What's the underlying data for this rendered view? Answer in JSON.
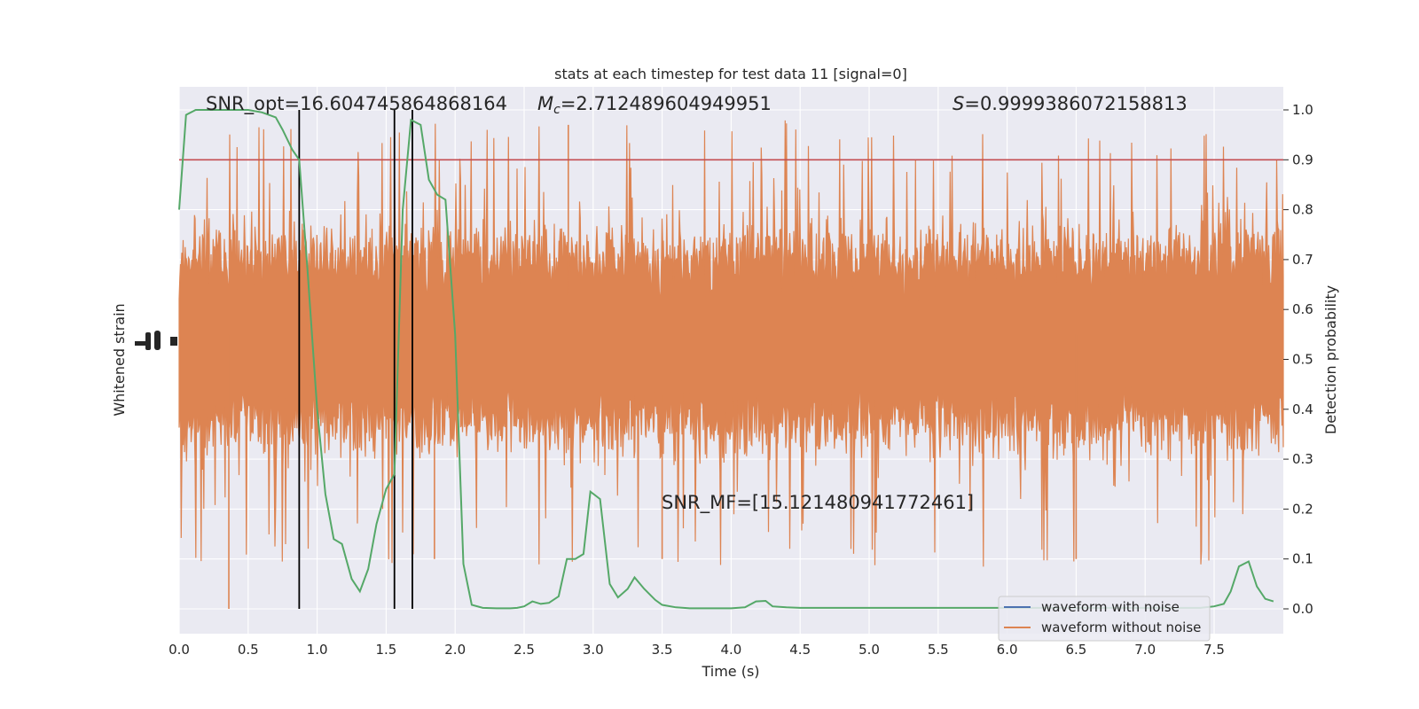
{
  "chart_data": {
    "type": "line",
    "title": "stats at each timestep for test data 11 [signal=0]",
    "xlabel": "Time (s)",
    "ylabel_left": "Whitened strain",
    "ylabel_right": "Detection probability",
    "xlim": [
      0,
      8.0
    ],
    "ylim_right": [
      -0.05,
      1.05
    ],
    "x_ticks": [
      "0.0",
      "0.5",
      "1.0",
      "1.5",
      "2.0",
      "2.5",
      "3.0",
      "3.5",
      "4.0",
      "4.5",
      "5.0",
      "5.5",
      "6.0",
      "6.5",
      "7.0",
      "7.5"
    ],
    "y_ticks_right": [
      "0.0",
      "0.1",
      "0.2",
      "0.3",
      "0.4",
      "0.5",
      "0.6",
      "0.7",
      "0.8",
      "0.9",
      "1.0"
    ],
    "grid": true,
    "threshold": 0.9,
    "vlines": [
      0.87,
      1.56,
      1.69
    ],
    "annotations": {
      "snr_opt": "SNR_opt=16.604745864868164",
      "mc_symbol": "M",
      "mc_sub": "c",
      "mc_value": "=2.712489604949951",
      "s_symbol": "S",
      "s_value": "=0.9999386072158813",
      "snr_mf": "SNR_MF=[15.121480941772461]"
    },
    "legend": {
      "placement": "lower-right",
      "entries": [
        {
          "label": "waveform with noise",
          "color": "#4c72b0"
        },
        {
          "label": "waveform without noise",
          "color": "#dd8452"
        }
      ]
    },
    "series": [
      {
        "name": "detection_probability",
        "color": "#55a868",
        "x": [
          0.0,
          0.05,
          0.12,
          0.2,
          0.3,
          0.4,
          0.5,
          0.6,
          0.7,
          0.75,
          0.82,
          0.87,
          0.93,
          1.0,
          1.06,
          1.12,
          1.18,
          1.25,
          1.31,
          1.37,
          1.43,
          1.5,
          1.56,
          1.62,
          1.68,
          1.75,
          1.81,
          1.87,
          1.93,
          2.0,
          2.06,
          2.12,
          2.2,
          2.3,
          2.4,
          2.45,
          2.5,
          2.56,
          2.62,
          2.68,
          2.75,
          2.81,
          2.87,
          2.93,
          2.98,
          3.05,
          3.12,
          3.18,
          3.25,
          3.3,
          3.37,
          3.45,
          3.5,
          3.6,
          3.7,
          3.8,
          3.9,
          4.0,
          4.1,
          4.18,
          4.25,
          4.3,
          4.4,
          4.5,
          4.6,
          4.7,
          4.8,
          5.0,
          5.2,
          5.4,
          5.6,
          5.8,
          6.0,
          6.2,
          6.4,
          6.6,
          6.8,
          7.0,
          7.2,
          7.4,
          7.5,
          7.57,
          7.62,
          7.68,
          7.75,
          7.81,
          7.87,
          7.93
        ],
        "y": [
          0.8,
          0.99,
          1.0,
          1.0,
          1.0,
          1.0,
          1.0,
          0.995,
          0.985,
          0.96,
          0.92,
          0.9,
          0.68,
          0.4,
          0.23,
          0.14,
          0.13,
          0.06,
          0.035,
          0.08,
          0.17,
          0.24,
          0.27,
          0.8,
          0.98,
          0.97,
          0.86,
          0.83,
          0.82,
          0.55,
          0.09,
          0.008,
          0.002,
          0.001,
          0.001,
          0.002,
          0.005,
          0.015,
          0.01,
          0.012,
          0.025,
          0.1,
          0.1,
          0.11,
          0.235,
          0.22,
          0.05,
          0.023,
          0.04,
          0.063,
          0.04,
          0.018,
          0.008,
          0.003,
          0.001,
          0.001,
          0.001,
          0.001,
          0.003,
          0.015,
          0.016,
          0.005,
          0.003,
          0.002,
          0.002,
          0.002,
          0.002,
          0.002,
          0.002,
          0.002,
          0.002,
          0.002,
          0.002,
          0.002,
          0.002,
          0.002,
          0.002,
          0.002,
          0.002,
          0.002,
          0.005,
          0.01,
          0.035,
          0.085,
          0.095,
          0.045,
          0.02,
          0.015
        ]
      }
    ]
  }
}
